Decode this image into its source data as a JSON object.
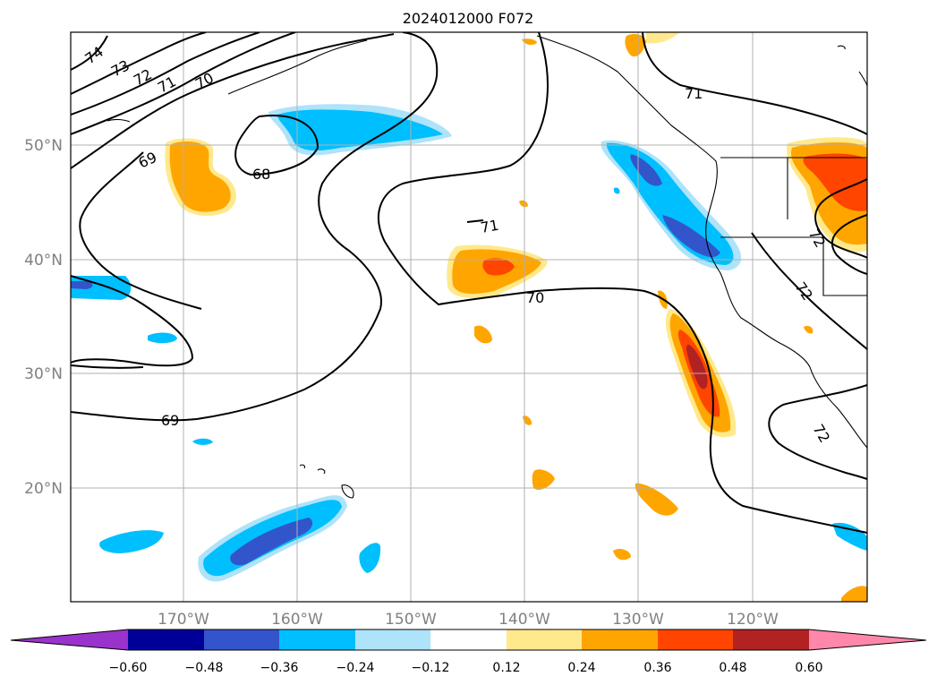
{
  "title": "2024012000 F072",
  "lat_labels": [
    "50°N",
    "40°N",
    "30°N",
    "20°N"
  ],
  "lon_labels": [
    "170°W",
    "160°W",
    "150°W",
    "140°W",
    "130°W",
    "120°W"
  ],
  "contour_labels": [
    "74",
    "73",
    "72",
    "71",
    "70",
    "69",
    "68",
    "71",
    "70",
    "69",
    "71",
    "72",
    "72",
    "72"
  ],
  "colorbar": {
    "ticks": [
      "−0.60",
      "−0.48",
      "−0.36",
      "−0.24",
      "−0.12",
      "0.12",
      "0.24",
      "0.36",
      "0.48",
      "0.60"
    ],
    "colors": {
      "under": "#9933cc",
      "b1": "#000099",
      "b2": "#3355cc",
      "b3": "#00bfff",
      "b4": "#aee3fa",
      "b5": "#ffffff",
      "b6": "#ffe98c",
      "b7": "#ffa500",
      "b8": "#ff4500",
      "b9": "#b22222",
      "over": "#ff88aa"
    }
  }
}
